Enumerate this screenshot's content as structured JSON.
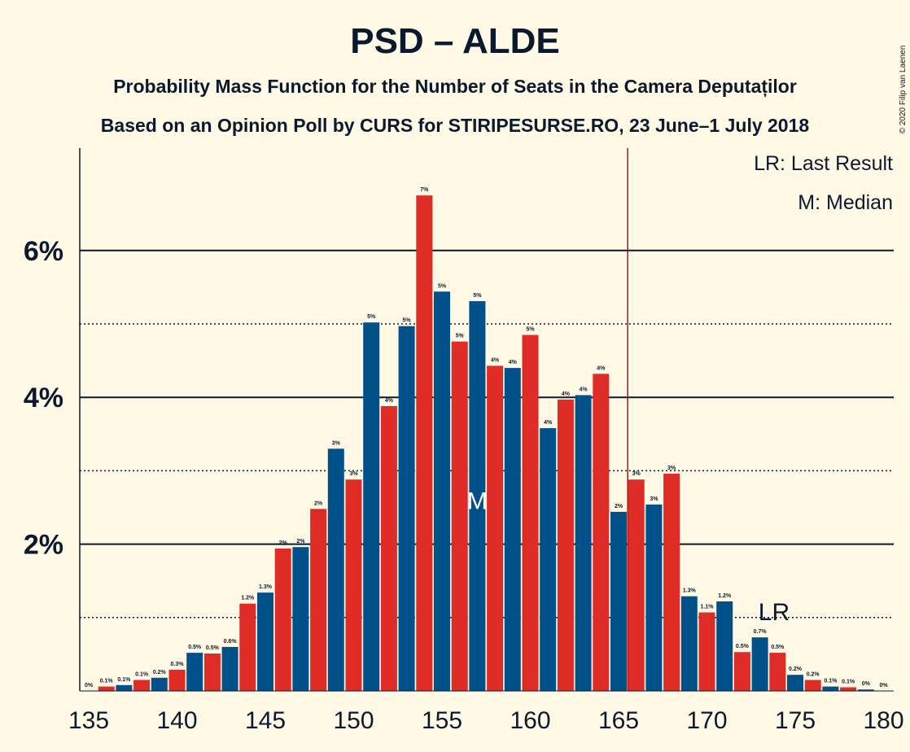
{
  "title": "PSD – ALDE",
  "subtitle1": "Probability Mass Function for the Number of Seats in the Camera Deputaților",
  "subtitle2": "Based on an Opinion Poll by CURS for STIRIPESURSE.RO, 23 June–1 July 2018",
  "copyright": "© 2020 Filip van Laenen",
  "legend": {
    "lr": "LR: Last Result",
    "m": "M: Median"
  },
  "colors": {
    "blue": "#00508a",
    "red": "#df2c26",
    "lastResultLine": "#b01020",
    "text": "#0a1a2e"
  },
  "chart_data": {
    "type": "bar",
    "x": [
      135,
      136,
      137,
      138,
      139,
      140,
      141,
      142,
      143,
      144,
      145,
      146,
      147,
      148,
      149,
      150,
      151,
      152,
      153,
      154,
      155,
      156,
      157,
      158,
      159,
      160,
      161,
      162,
      163,
      164,
      165,
      166,
      167,
      168,
      169,
      170,
      171,
      172,
      173,
      174,
      175,
      176,
      177,
      178,
      179,
      180
    ],
    "values": [
      0.0,
      0.06,
      0.08,
      0.15,
      0.18,
      0.29,
      0.52,
      0.51,
      0.6,
      1.19,
      1.34,
      1.94,
      1.96,
      2.48,
      3.3,
      2.88,
      5.02,
      3.88,
      4.97,
      6.75,
      5.44,
      4.76,
      5.31,
      4.43,
      4.4,
      4.85,
      3.58,
      3.97,
      4.03,
      4.32,
      2.44,
      2.88,
      2.54,
      2.96,
      1.29,
      1.07,
      1.22,
      0.53,
      0.73,
      0.52,
      0.22,
      0.15,
      0.06,
      0.05,
      0.02,
      0.0
    ],
    "labels": [
      "0%",
      "0.1%",
      "0.1%",
      "0.1%",
      "0.2%",
      "0.3%",
      "0.5%",
      "0.5%",
      "0.6%",
      "1.2%",
      "1.3%",
      "2%",
      "2%",
      "2%",
      "3%",
      "3%",
      "5%",
      "4%",
      "5%",
      "7%",
      "5%",
      "5%",
      "5%",
      "4%",
      "4%",
      "5%",
      "4%",
      "4%",
      "4%",
      "4%",
      "2%",
      "3%",
      "3%",
      "3%",
      "1.3%",
      "1.1%",
      "1.2%",
      "0.5%",
      "0.7%",
      "0.5%",
      "0.2%",
      "0.2%",
      "0.1%",
      "0.1%",
      "0%",
      "0%"
    ],
    "xticks": [
      135,
      140,
      145,
      150,
      155,
      160,
      165,
      170,
      175,
      180
    ],
    "yticks": [
      {
        "value": 2,
        "label": "2%"
      },
      {
        "value": 4,
        "label": "4%"
      },
      {
        "value": 6,
        "label": "6%"
      }
    ],
    "dotted_y": [
      1,
      3,
      5
    ],
    "ylim": [
      0,
      7.2
    ],
    "median": 157,
    "median_label": "M",
    "last_result": 166,
    "last_result_label": "LR"
  }
}
